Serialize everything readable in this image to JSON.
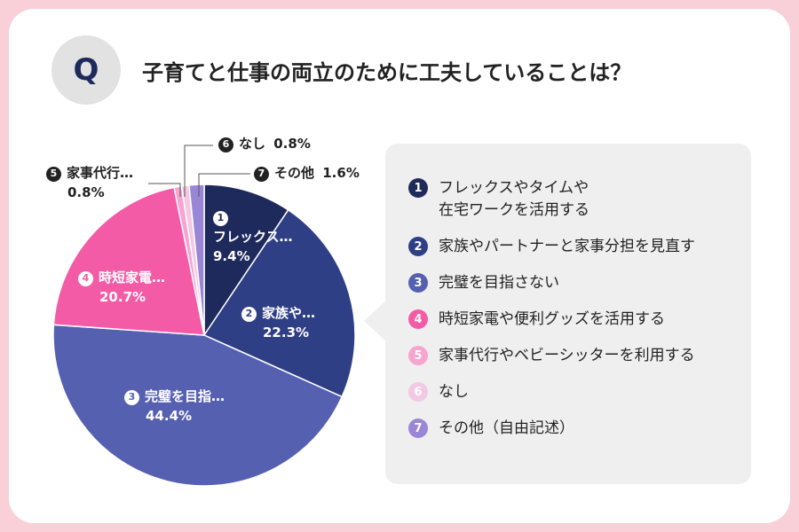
{
  "question_badge": "Q",
  "title": "子育てと仕事の両立のために工夫していることは？",
  "colors": {
    "s1": "#1f2a5c",
    "s2": "#2f3f85",
    "s3": "#5560b0",
    "s4": "#f35ba6",
    "s5": "#f7a4cf",
    "s6": "#f3c8e2",
    "s7": "#9a86d6",
    "card_bg": "#ffffff",
    "frame": "#f9cfd8",
    "legend_bg": "#efefef"
  },
  "chart_data": {
    "type": "pie",
    "title": "子育てと仕事の両立のために工夫していることは？",
    "unit": "%",
    "slices": [
      {
        "num": "1",
        "label": "フレックス…",
        "full": "フレックスやタイムや\n在宅ワークを活用する",
        "value": 9.4,
        "value_text": "9.4%"
      },
      {
        "num": "2",
        "label": "家族や…",
        "full": "家族やパートナーと家事分担を見直す",
        "value": 22.3,
        "value_text": "22.3%"
      },
      {
        "num": "3",
        "label": "完璧を目指…",
        "full": "完璧を目指さない",
        "value": 44.4,
        "value_text": "44.4%"
      },
      {
        "num": "4",
        "label": "時短家電…",
        "full": "時短家電や便利グッズを活用する",
        "value": 20.7,
        "value_text": "20.7%"
      },
      {
        "num": "5",
        "label": "家事代行…",
        "full": "家事代行やベビーシッターを利用する",
        "value": 0.8,
        "value_text": "0.8%"
      },
      {
        "num": "6",
        "label": "なし",
        "full": "なし",
        "value": 0.8,
        "value_text": "0.8%"
      },
      {
        "num": "7",
        "label": "その他",
        "full": "その他（自由記述）",
        "value": 1.6,
        "value_text": "1.6%"
      }
    ]
  }
}
